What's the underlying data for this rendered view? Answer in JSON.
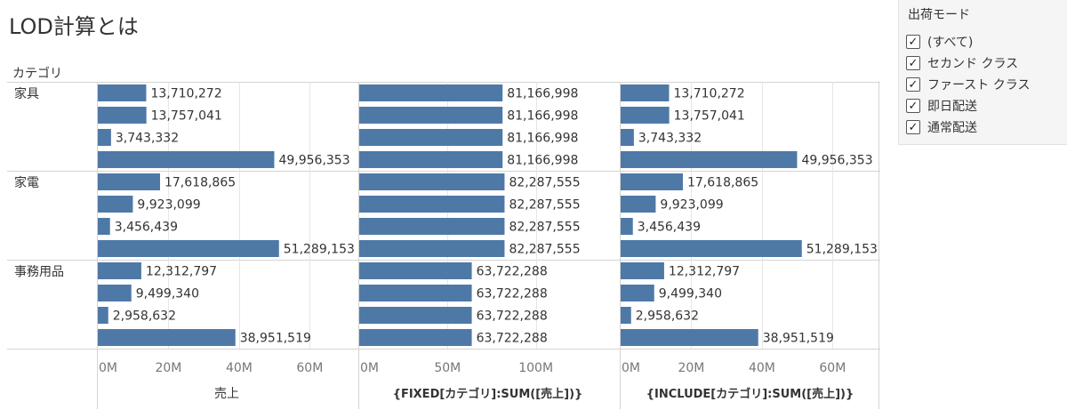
{
  "title": "LOD計算とは",
  "row_header_title": "カテゴリ",
  "categories": [
    "家具",
    "家電",
    "事務用品"
  ],
  "filter": {
    "title": "出荷モード",
    "items": [
      {
        "label": "(すべて)",
        "checked": true
      },
      {
        "label": "セカンド クラス",
        "checked": true
      },
      {
        "label": "ファースト クラス",
        "checked": true
      },
      {
        "label": "即日配送",
        "checked": true
      },
      {
        "label": "通常配送",
        "checked": true
      }
    ]
  },
  "colors": {
    "bar": "#4e79a7",
    "grid": "#e6e6e6",
    "divider": "#d4d4d4",
    "text": "#333333",
    "tick": "#777777"
  },
  "chart_data": {
    "type": "bar",
    "orientation": "horizontal",
    "rows": [
      "家具",
      "家電",
      "事務用品"
    ],
    "bars_per_row": 4,
    "panels": [
      {
        "measure": "売上",
        "xlim": [
          0,
          73000000
        ],
        "ticks": [
          0,
          20000000,
          40000000,
          60000000
        ],
        "tick_labels": [
          "0M",
          "20M",
          "40M",
          "60M"
        ],
        "values": [
          [
            13710272,
            13757041,
            3743332,
            49956353
          ],
          [
            17618865,
            9923099,
            3456439,
            51289153
          ],
          [
            12312797,
            9499340,
            2958632,
            38951519
          ]
        ],
        "labels": [
          [
            "13,710,272",
            "13,757,041",
            "3,743,332",
            "49,956,353"
          ],
          [
            "17,618,865",
            "9,923,099",
            "3,456,439",
            "51,289,153"
          ],
          [
            "12,312,797",
            "9,499,340",
            "2,958,632",
            "38,951,519"
          ]
        ]
      },
      {
        "measure": "{FIXED[カテゴリ]:SUM([売上])}",
        "xlim": [
          0,
          146000000
        ],
        "ticks": [
          0,
          50000000,
          100000000
        ],
        "tick_labels": [
          "0M",
          "50M",
          "100M"
        ],
        "values": [
          [
            81166998,
            81166998,
            81166998,
            81166998
          ],
          [
            82287555,
            82287555,
            82287555,
            82287555
          ],
          [
            63722288,
            63722288,
            63722288,
            63722288
          ]
        ],
        "labels": [
          [
            "81,166,998",
            "81,166,998",
            "81,166,998",
            "81,166,998"
          ],
          [
            "82,287,555",
            "82,287,555",
            "82,287,555",
            "82,287,555"
          ],
          [
            "63,722,288",
            "63,722,288",
            "63,722,288",
            "63,722,288"
          ]
        ]
      },
      {
        "measure": "{INCLUDE[カテゴリ]:SUM([売上])}",
        "xlim": [
          0,
          73000000
        ],
        "ticks": [
          0,
          20000000,
          40000000,
          60000000
        ],
        "tick_labels": [
          "0M",
          "20M",
          "40M",
          "60M"
        ],
        "values": [
          [
            13710272,
            13757041,
            3743332,
            49956353
          ],
          [
            17618865,
            9923099,
            3456439,
            51289153
          ],
          [
            12312797,
            9499340,
            2958632,
            38951519
          ]
        ],
        "labels": [
          [
            "13,710,272",
            "13,757,041",
            "3,743,332",
            "49,956,353"
          ],
          [
            "17,618,865",
            "9,923,099",
            "3,456,439",
            "51,289,153"
          ],
          [
            "12,312,797",
            "9,499,340",
            "2,958,632",
            "38,951,519"
          ]
        ]
      }
    ]
  }
}
